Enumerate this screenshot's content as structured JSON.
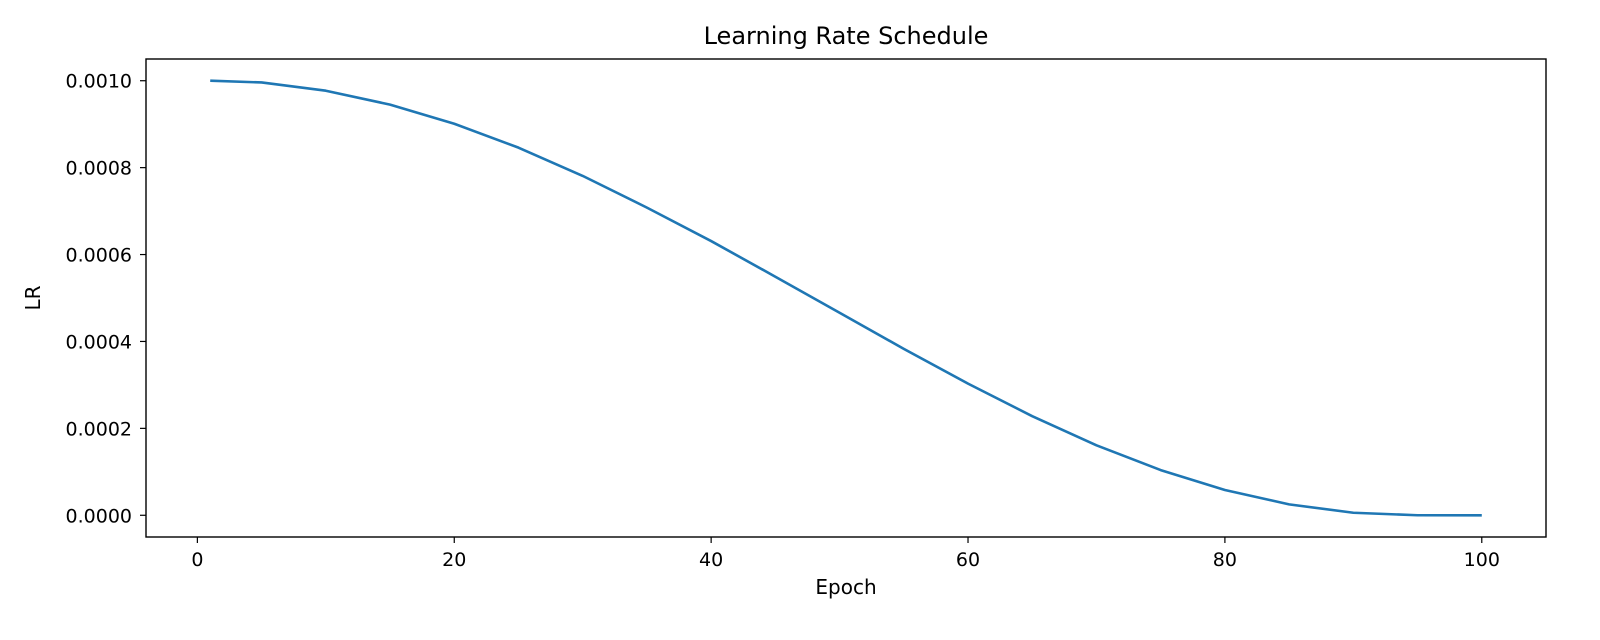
{
  "chart_data": {
    "type": "line",
    "title": "Learning Rate Schedule",
    "xlabel": "Epoch",
    "ylabel": "LR",
    "xlim": [
      -4,
      105
    ],
    "ylim": [
      -5e-05,
      0.00105
    ],
    "xticks": [
      0,
      20,
      40,
      60,
      80,
      100
    ],
    "xtick_labels": [
      "0",
      "20",
      "40",
      "60",
      "80",
      "100"
    ],
    "yticks": [
      0,
      0.0002,
      0.0004,
      0.0006,
      0.0008,
      0.001
    ],
    "ytick_labels": [
      "0.0000",
      "0.0002",
      "0.0004",
      "0.0006",
      "0.0008",
      "0.0010"
    ],
    "grid": false,
    "legend": "none",
    "series": [
      {
        "color": "#1f77b4",
        "x": [
          1,
          5,
          10,
          15,
          20,
          25,
          30,
          35,
          40,
          45,
          50,
          55,
          60,
          65,
          70,
          75,
          80,
          85,
          90,
          95,
          100
        ],
        "y": [
          0.001,
          0.000996,
          0.000977,
          0.000945,
          0.000901,
          0.000846,
          0.000781,
          0.000708,
          0.000631,
          0.000549,
          0.000466,
          0.000383,
          0.000303,
          0.000228,
          0.000161,
          0.000104,
          5.81e-05,
          2.51e-05,
          5.8e-06,
          2e-08,
          0.0
        ]
      }
    ]
  }
}
